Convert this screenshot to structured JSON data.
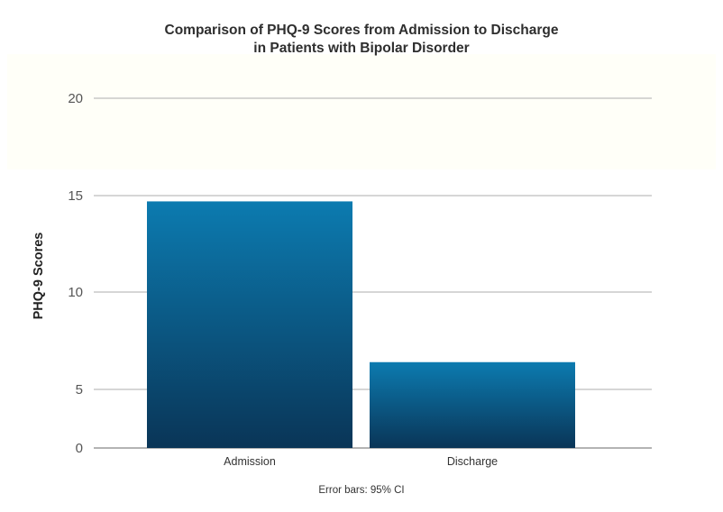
{
  "chart_data": {
    "type": "bar",
    "title": [
      "Comparison of PHQ-9 Scores from Admission to Discharge",
      "in Patients with Bipolar Disorder"
    ],
    "xlabel": "",
    "ylabel": "PHQ-9 Scores",
    "categories": [
      "Admission",
      "Discharge"
    ],
    "values": [
      14.7,
      6.4
    ],
    "ylim": [
      0,
      20
    ],
    "yticks": [
      0,
      5,
      10,
      15,
      20
    ],
    "grid": true,
    "legend": "none",
    "footnote": "Error bars: 95% CI",
    "colors": {
      "bar_top": "#0c7bb0",
      "bar_bottom": "#0a3557",
      "grid": "#bdbdbd",
      "axis": "#9a9a9a"
    }
  }
}
